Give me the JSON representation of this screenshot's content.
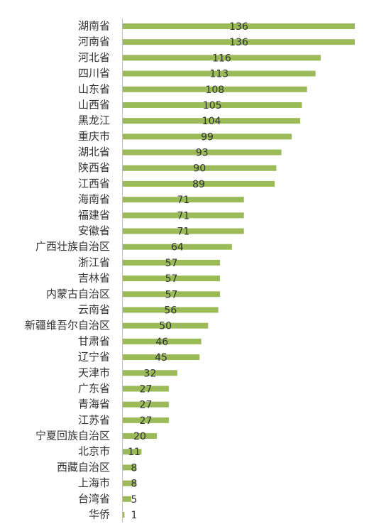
{
  "chart_data": {
    "type": "bar",
    "orientation": "horizontal",
    "color": "#9bbb59",
    "categories": [
      "湖南省",
      "河南省",
      "河北省",
      "四川省",
      "山东省",
      "山西省",
      "黑龙江",
      "重庆市",
      "湖北省",
      "陕西省",
      "江西省",
      "海南省",
      "福建省",
      "安徽省",
      "广西壮族自治区",
      "浙江省",
      "吉林省",
      "内蒙古自治区",
      "云南省",
      "新疆维吾尔自治区",
      "甘肃省",
      "辽宁省",
      "天津市",
      "广东省",
      "青海省",
      "江苏省",
      "宁夏回族自治区",
      "北京市",
      "西藏自治区",
      "上海市",
      "台湾省",
      "华侨"
    ],
    "values": [
      136,
      136,
      116,
      113,
      108,
      105,
      104,
      99,
      93,
      90,
      89,
      71,
      71,
      71,
      64,
      57,
      57,
      57,
      56,
      50,
      46,
      45,
      32,
      27,
      27,
      27,
      20,
      11,
      8,
      8,
      5,
      1
    ]
  }
}
